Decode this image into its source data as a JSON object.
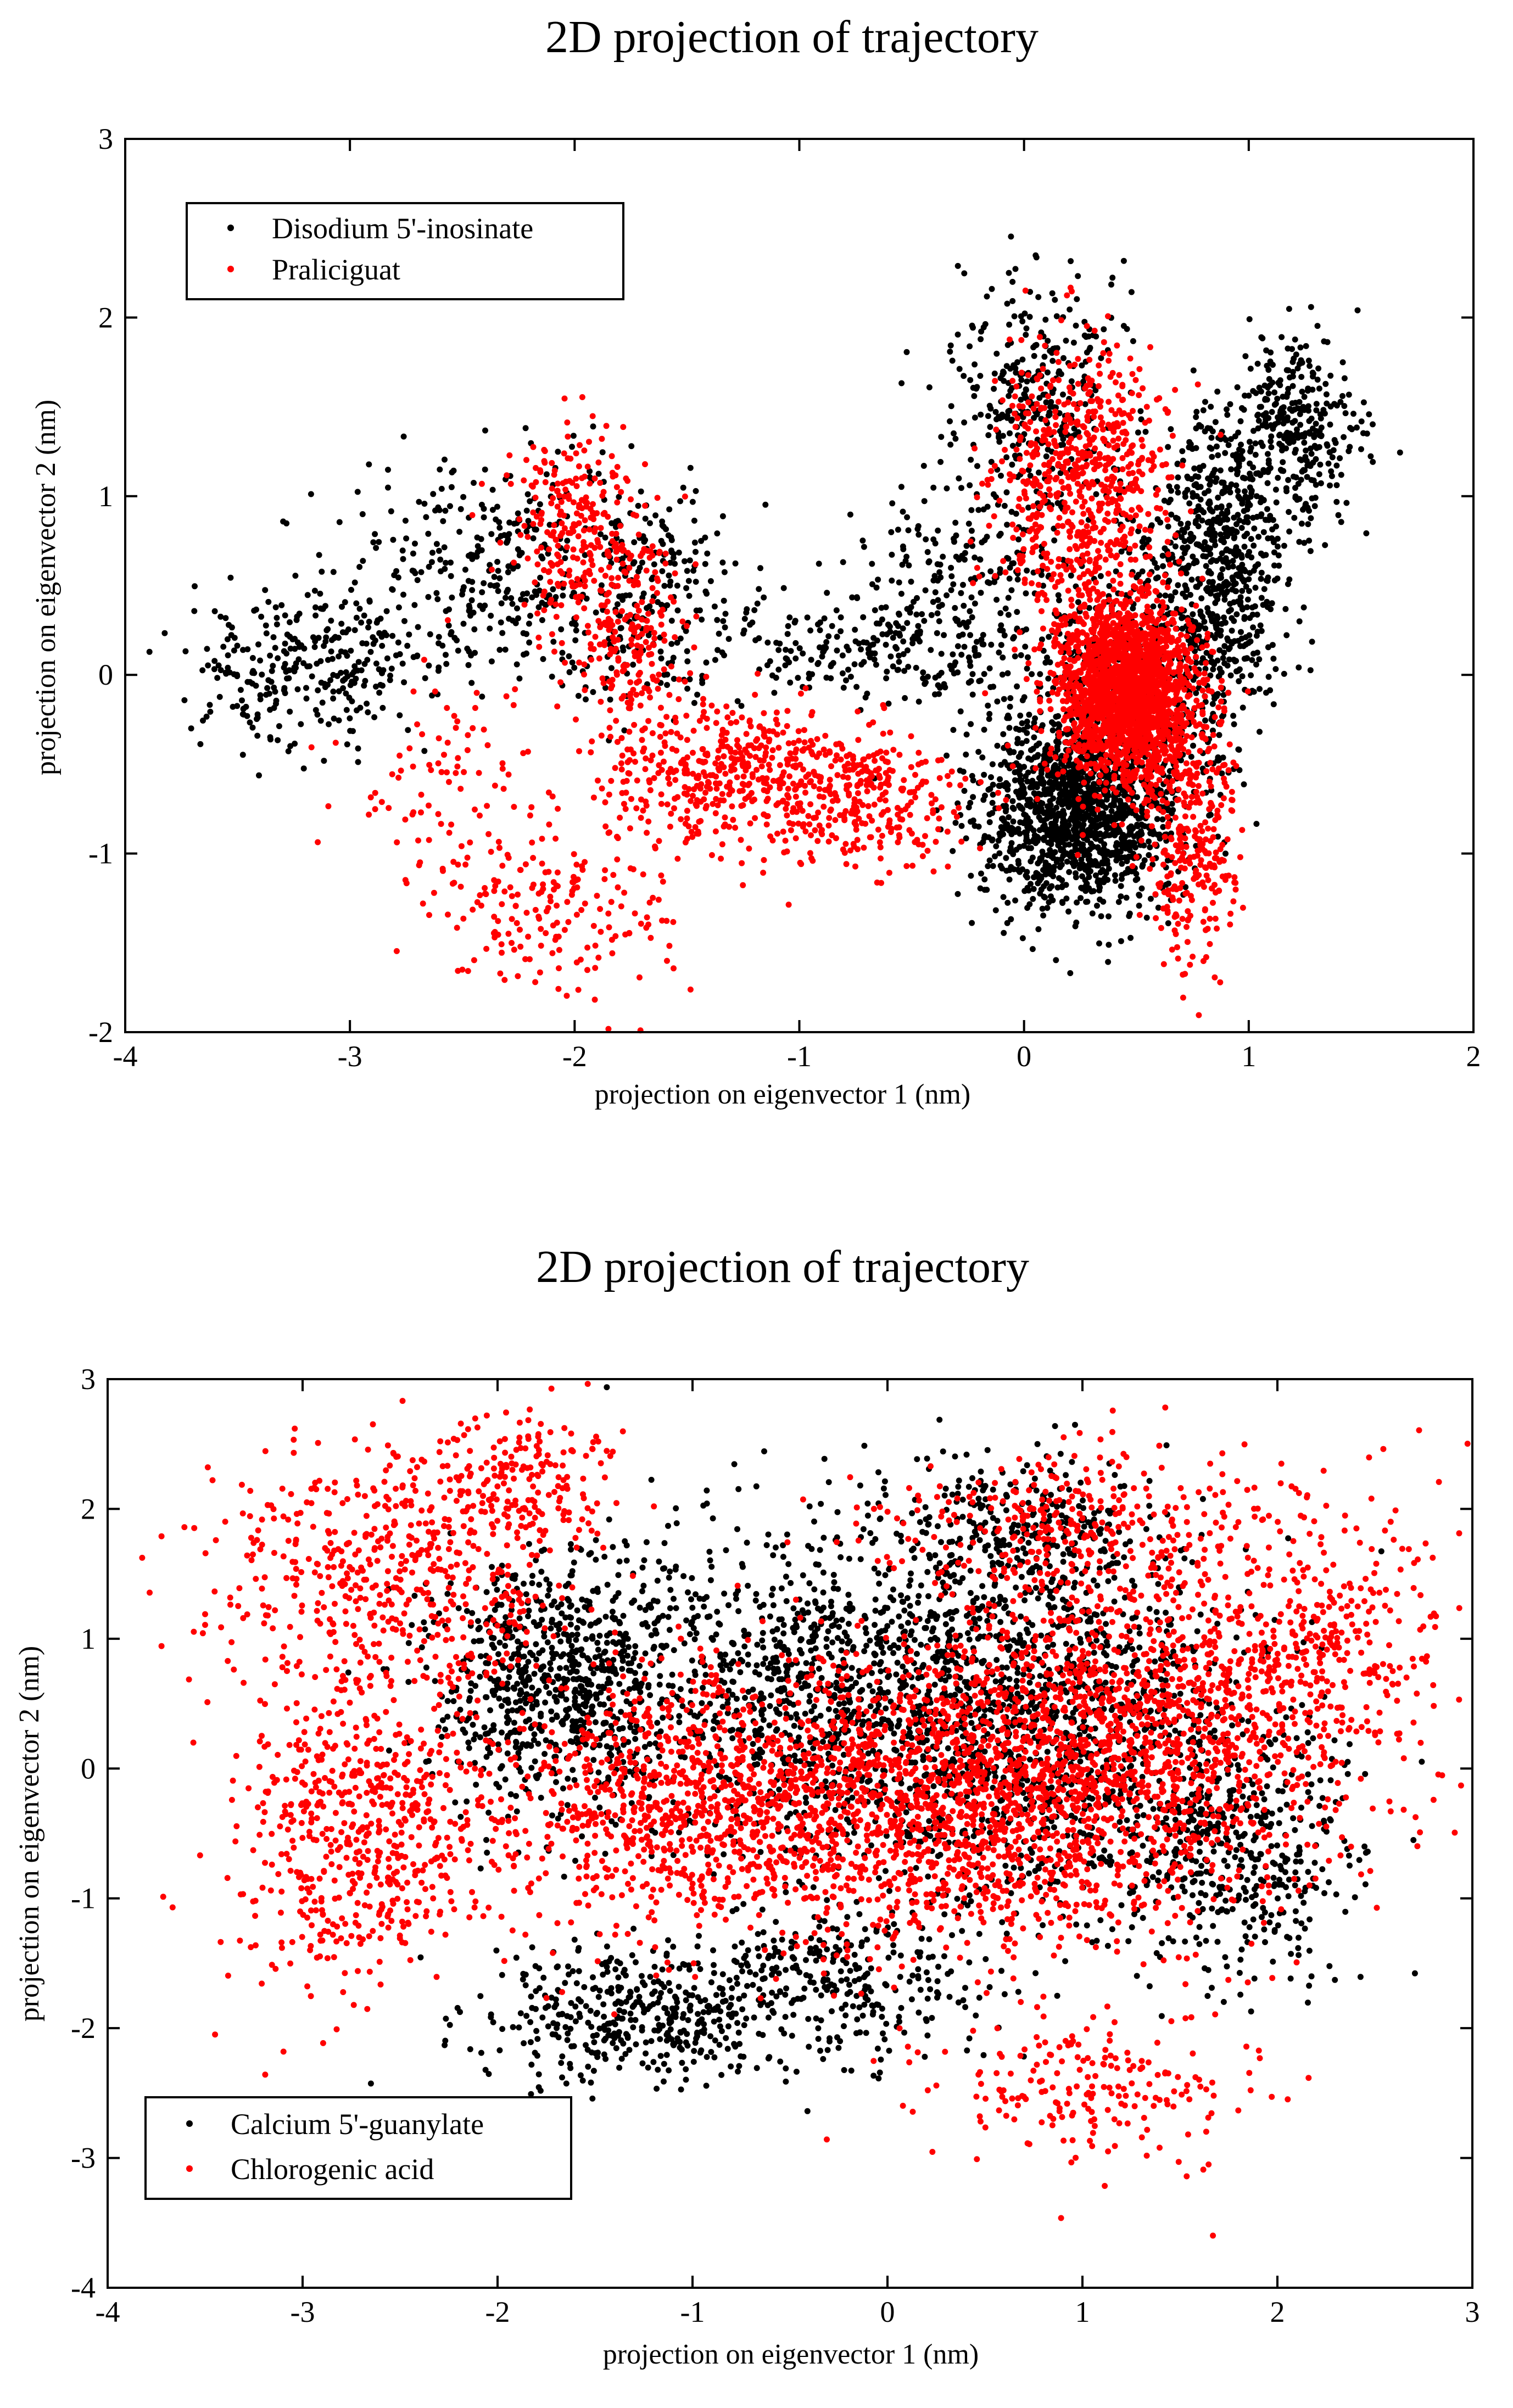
{
  "chart_data": [
    {
      "type": "scatter",
      "title": "2D projection of trajectory",
      "xlabel": "projection on eigenvector 1 (nm)",
      "ylabel": "projection on eigenvector 2 (nm)",
      "xlim": [
        -4,
        2
      ],
      "ylim": [
        -2,
        3
      ],
      "xticks": [
        -4,
        -3,
        -2,
        -1,
        0,
        1,
        2
      ],
      "yticks": [
        -2,
        -1,
        0,
        1,
        2,
        3
      ],
      "legend_position": "top-left",
      "series": [
        {
          "name": "Disodium 5'-inosinate",
          "color": "#000000",
          "clusters": [
            {
              "cx": 0.25,
              "cy": -0.75,
              "sx": 0.22,
              "sy": 0.28,
              "n": 1400
            },
            {
              "cx": 0.85,
              "cy": 0.55,
              "sx": 0.16,
              "sy": 0.45,
              "n": 650
            },
            {
              "cx": 1.2,
              "cy": 1.35,
              "sx": 0.15,
              "sy": 0.25,
              "n": 350
            },
            {
              "cx": 0.05,
              "cy": 1.6,
              "sx": 0.18,
              "sy": 0.35,
              "n": 320
            },
            {
              "cx": -0.3,
              "cy": 0.45,
              "sx": 0.22,
              "sy": 0.35,
              "n": 260
            },
            {
              "cx": -3.2,
              "cy": 0.05,
              "sx": 0.25,
              "sy": 0.22,
              "n": 300
            },
            {
              "cx": -2.3,
              "cy": 0.6,
              "sx": 0.35,
              "sy": 0.3,
              "n": 350
            },
            {
              "cx": -1.6,
              "cy": 0.45,
              "sx": 0.2,
              "sy": 0.3,
              "n": 200
            },
            {
              "cx": -0.8,
              "cy": 0.15,
              "sx": 0.3,
              "sy": 0.12,
              "n": 150
            },
            {
              "cx": 0.45,
              "cy": 0.0,
              "sx": 0.25,
              "sy": 0.4,
              "n": 400
            }
          ]
        },
        {
          "name": "Praliciguat",
          "color": "#ff0000",
          "clusters": [
            {
              "cx": 0.45,
              "cy": -0.1,
              "sx": 0.15,
              "sy": 0.25,
              "n": 2000
            },
            {
              "cx": 0.25,
              "cy": 1.1,
              "sx": 0.2,
              "sy": 0.35,
              "n": 650
            },
            {
              "cx": 0.75,
              "cy": -0.9,
              "sx": 0.1,
              "sy": 0.35,
              "n": 300
            },
            {
              "cx": -2.0,
              "cy": 0.8,
              "sx": 0.15,
              "sy": 0.3,
              "n": 260
            },
            {
              "cx": -1.75,
              "cy": 0.1,
              "sx": 0.12,
              "sy": 0.35,
              "n": 200
            },
            {
              "cx": -1.3,
              "cy": -0.55,
              "sx": 0.3,
              "sy": 0.2,
              "n": 450
            },
            {
              "cx": -0.7,
              "cy": -0.7,
              "sx": 0.25,
              "sy": 0.2,
              "n": 250
            },
            {
              "cx": -2.1,
              "cy": -1.3,
              "sx": 0.3,
              "sy": 0.25,
              "n": 200
            },
            {
              "cx": -2.6,
              "cy": -0.6,
              "sx": 0.2,
              "sy": 0.3,
              "n": 80
            }
          ]
        }
      ]
    },
    {
      "type": "scatter",
      "title": "2D projection of trajectory",
      "xlabel": "projection on eigenvector 1 (nm)",
      "ylabel": "projection on eigenvector 2 (nm)",
      "xlim": [
        -4,
        3
      ],
      "ylim": [
        -4,
        3
      ],
      "xticks": [
        -4,
        -3,
        -2,
        -1,
        0,
        1,
        2,
        3
      ],
      "yticks": [
        -4,
        -3,
        -2,
        -1,
        0,
        1,
        2,
        3
      ],
      "legend_position": "bottom-left",
      "series": [
        {
          "name": "Calcium 5'-guanylate",
          "color": "#000000",
          "clusters": [
            {
              "cx": -1.7,
              "cy": 0.7,
              "sx": 0.35,
              "sy": 0.5,
              "n": 800
            },
            {
              "cx": -0.2,
              "cy": 0.5,
              "sx": 0.6,
              "sy": 0.7,
              "n": 1200
            },
            {
              "cx": 0.9,
              "cy": 0.3,
              "sx": 0.5,
              "sy": 0.7,
              "n": 1000
            },
            {
              "cx": 1.8,
              "cy": -0.6,
              "sx": 0.3,
              "sy": 0.5,
              "n": 400
            },
            {
              "cx": -1.3,
              "cy": -1.9,
              "sx": 0.4,
              "sy": 0.25,
              "n": 400
            },
            {
              "cx": -0.3,
              "cy": -1.7,
              "sx": 0.4,
              "sy": 0.3,
              "n": 300
            },
            {
              "cx": 0.7,
              "cy": 1.8,
              "sx": 0.35,
              "sy": 0.3,
              "n": 250
            }
          ]
        },
        {
          "name": "Chlorogenic acid",
          "color": "#ff0000",
          "clusters": [
            {
              "cx": -2.6,
              "cy": 1.5,
              "sx": 0.45,
              "sy": 0.5,
              "n": 500
            },
            {
              "cx": -2.7,
              "cy": -0.5,
              "sx": 0.35,
              "sy": 0.6,
              "n": 600
            },
            {
              "cx": -1.0,
              "cy": -0.3,
              "sx": 0.5,
              "sy": 0.5,
              "n": 900
            },
            {
              "cx": 0.4,
              "cy": -0.2,
              "sx": 0.6,
              "sy": 0.6,
              "n": 1500
            },
            {
              "cx": 1.3,
              "cy": 0.3,
              "sx": 0.5,
              "sy": 0.7,
              "n": 900
            },
            {
              "cx": 2.2,
              "cy": 0.8,
              "sx": 0.35,
              "sy": 0.6,
              "n": 400
            },
            {
              "cx": 1.0,
              "cy": 1.9,
              "sx": 0.5,
              "sy": 0.3,
              "n": 300
            },
            {
              "cx": -1.9,
              "cy": 2.2,
              "sx": 0.3,
              "sy": 0.3,
              "n": 200
            },
            {
              "cx": 1.1,
              "cy": -2.5,
              "sx": 0.4,
              "sy": 0.3,
              "n": 200
            }
          ]
        }
      ]
    }
  ]
}
